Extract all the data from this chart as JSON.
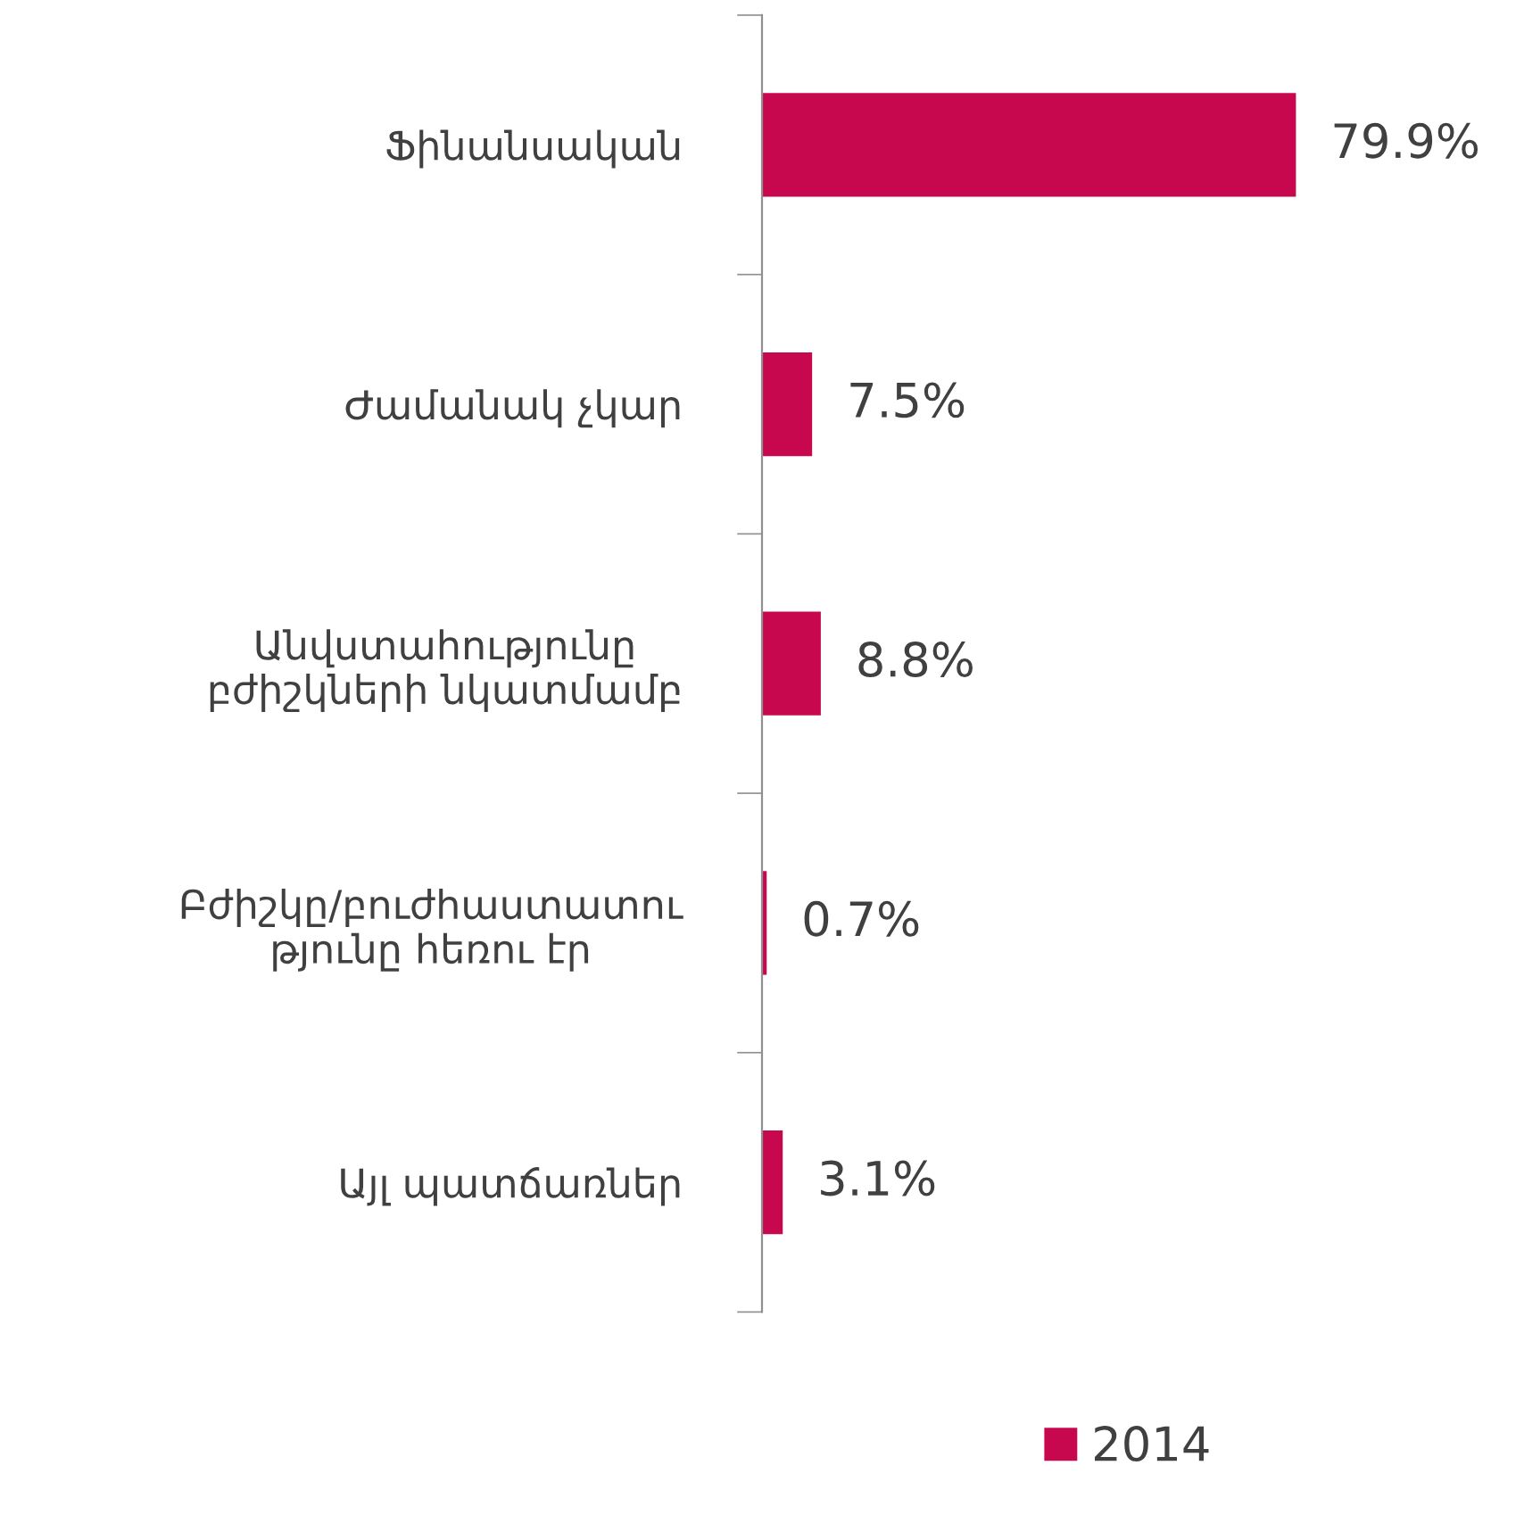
{
  "chart_data": {
    "type": "bar",
    "orientation": "horizontal",
    "categories": [
      "Ֆինանսական",
      "Ժամանակ չկար",
      "Անվստահությունը\nբժիշկների նկատմամբ",
      "Բժիշկը/բուժհաստատու\nթյունը հեռու էր",
      "Այլ պատճառներ"
    ],
    "series": [
      {
        "name": "2014",
        "color": "#c8084e",
        "values": [
          79.9,
          7.5,
          8.8,
          0.7,
          3.1
        ],
        "value_labels": [
          "79.9%",
          "7.5%",
          "8.8%",
          "0.7%",
          "3.1%"
        ]
      }
    ],
    "legend": "bottom"
  }
}
